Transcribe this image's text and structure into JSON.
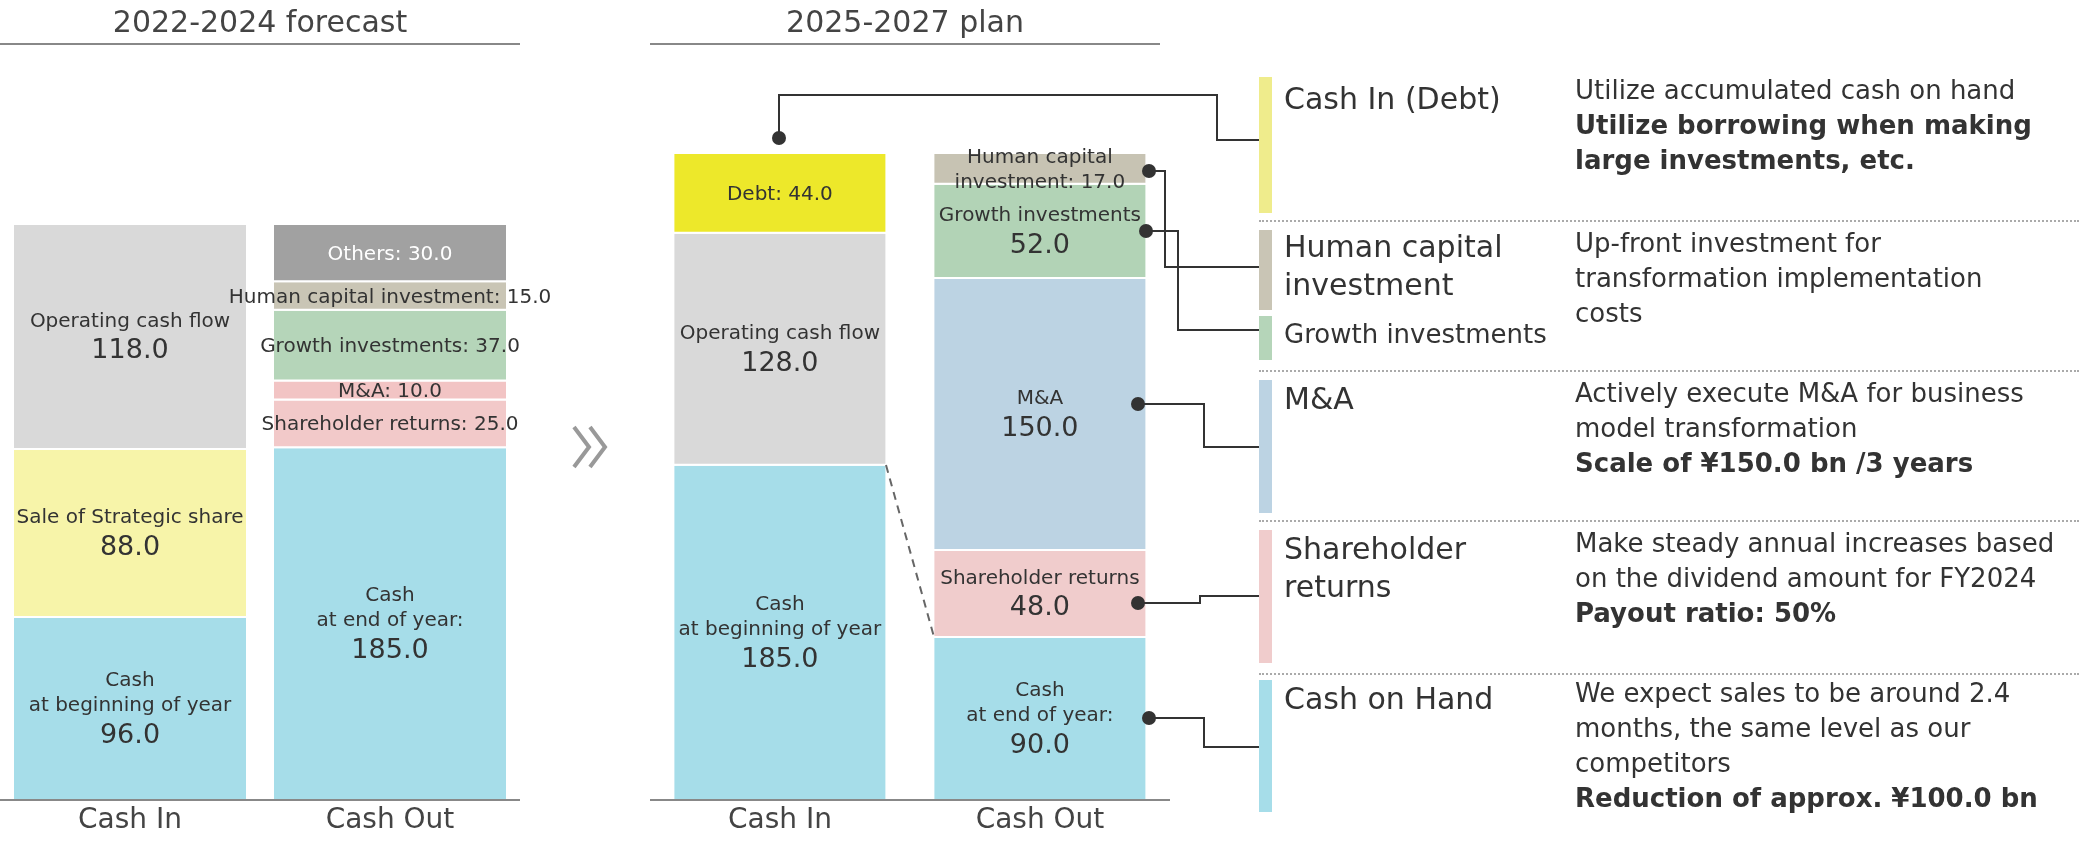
{
  "chart_data": [
    {
      "type": "bar",
      "stacked": true,
      "title": "2022-2024 forecast",
      "categories": [
        "Cash In",
        "Cash Out"
      ],
      "series": [
        {
          "color": "#a6dde9",
          "values": [
            96.0,
            null
          ],
          "value_labels": [
            "Cash\nat beginning of year\n96.0",
            null
          ]
        },
        {
          "color": "#f7f4a9",
          "values": [
            88.0,
            null
          ],
          "value_labels": [
            "Sale of Strategic share\n88.0",
            null
          ]
        },
        {
          "color": "#d9d9d9",
          "values": [
            118.0,
            null
          ],
          "value_labels": [
            "Operating cash flow\n118.0",
            null
          ]
        },
        {
          "color": "#a6dde9",
          "values": [
            null,
            185.0
          ],
          "value_labels": [
            null,
            "Cash\nat end of year:\n185.0"
          ]
        },
        {
          "color": "#f2c9c9",
          "values": [
            null,
            25.0
          ],
          "value_labels": [
            null,
            "Shareholder returns: 25.0"
          ]
        },
        {
          "color": "#f2c4c4",
          "values": [
            null,
            10.0
          ],
          "value_labels": [
            null,
            "M&A: 10.0"
          ]
        },
        {
          "color": "#b5d5b9",
          "values": [
            null,
            37.0
          ],
          "value_labels": [
            null,
            "Growth investments: 37.0"
          ]
        },
        {
          "color": "#c9c5b5",
          "values": [
            null,
            15.0
          ],
          "value_labels": [
            null,
            "Human capital investment: 15.0"
          ]
        },
        {
          "color": "#a1a1a1",
          "values": [
            null,
            30.0
          ],
          "value_labels": [
            null,
            "Others: 30.0"
          ]
        }
      ]
    },
    {
      "type": "bar",
      "stacked": true,
      "title": "2025-2027 plan",
      "categories": [
        "Cash In",
        "Cash Out"
      ],
      "series": [
        {
          "color": "#a6dde9",
          "values": [
            185.0,
            null
          ],
          "value_labels": [
            "Cash\nat beginning of year\n185.0",
            null
          ]
        },
        {
          "color": "#d9d9d9",
          "values": [
            128.0,
            null
          ],
          "value_labels": [
            "Operating cash flow\n128.0",
            null
          ]
        },
        {
          "color": "#ede82a",
          "values": [
            44.0,
            null
          ],
          "value_labels": [
            "Debt: 44.0",
            null
          ]
        },
        {
          "color": "#a6dde9",
          "values": [
            null,
            90.0
          ],
          "value_labels": [
            null,
            "Cash\nat end of year:\n90.0"
          ]
        },
        {
          "color": "#f0cccc",
          "values": [
            null,
            48.0
          ],
          "value_labels": [
            null,
            "Shareholder returns\n48.0"
          ]
        },
        {
          "color": "#bcd3e3",
          "values": [
            null,
            150.0
          ],
          "value_labels": [
            null,
            "M&A\n150.0"
          ]
        },
        {
          "color": "#b2d3b6",
          "values": [
            null,
            52.0
          ],
          "value_labels": [
            null,
            "Growth investments\n52.0"
          ]
        },
        {
          "color": "#c7c3b3",
          "values": [
            null,
            17.0
          ],
          "value_labels": [
            null,
            "Human capital\ninvestment: 17.0"
          ]
        }
      ]
    },
    {
      "type": "other",
      "annotations": [
        "Cash In (Debt)",
        "Utilize accumulated cash on hand",
        "Utilize borrowing when making large investments, etc.",
        "Human capital investment",
        "Growth investments",
        "Up-front investment for transformation implementation costs",
        "M&A",
        "Actively execute M&A for business model transformation",
        "Scale of ¥150.0 bn /3 years",
        "Shareholder returns",
        "Make steady annual increases based on the dividend amount for FY2024",
        "Payout ratio: 50%",
        "Cash on Hand",
        "We expect sales to be around 2.4 months, the same level as our competitors",
        "Reduction of approx. ¥100.0 bn"
      ]
    }
  ]
}
